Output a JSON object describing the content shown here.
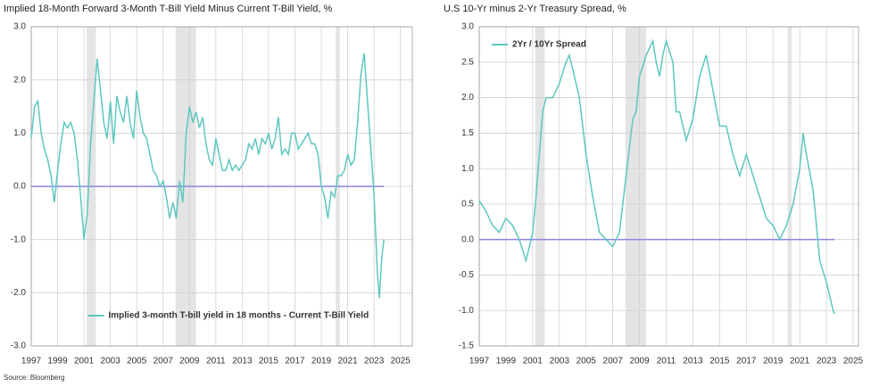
{
  "chart_data": [
    {
      "type": "line",
      "title": "Implied 18-Month Forward 3-Month T-Bill Yield Minus Current T-Bill Yield, %",
      "xlim": [
        1997,
        2025.9
      ],
      "xticks": [
        1997,
        1999,
        2001,
        2003,
        2005,
        2007,
        2009,
        2011,
        2013,
        2015,
        2017,
        2019,
        2021,
        2023,
        2025
      ],
      "ylim": [
        -3,
        3
      ],
      "yticks": [
        {
          "value": 3,
          "label": "3.0"
        },
        {
          "value": 2,
          "label": "2.0"
        },
        {
          "value": 1,
          "label": "1.0"
        },
        {
          "value": 0,
          "label": "0.0"
        },
        {
          "value": -1,
          "label": "-1.0"
        },
        {
          "value": -2,
          "label": "-2.0"
        },
        {
          "value": -3,
          "label": "-3.0"
        }
      ],
      "grid": true,
      "legend": "bottom",
      "reference_line": 0,
      "reference_color": "#8a86e0",
      "shaded_periods": [
        [
          2001.2,
          2001.9
        ],
        [
          2007.95,
          2009.5
        ],
        [
          2020.1,
          2020.4
        ]
      ],
      "x": [
        1997,
        1997.25,
        1997.5,
        1997.75,
        1998,
        1998.25,
        1998.5,
        1998.75,
        1999,
        1999.25,
        1999.5,
        1999.75,
        2000,
        2000.25,
        2000.5,
        2000.75,
        2001,
        2001.25,
        2001.5,
        2001.75,
        2002,
        2002.25,
        2002.5,
        2002.75,
        2003,
        2003.25,
        2003.5,
        2003.75,
        2004,
        2004.25,
        2004.5,
        2004.75,
        2005,
        2005.25,
        2005.5,
        2005.75,
        2006,
        2006.25,
        2006.5,
        2006.75,
        2007,
        2007.25,
        2007.5,
        2007.75,
        2008,
        2008.25,
        2008.5,
        2008.75,
        2009,
        2009.25,
        2009.5,
        2009.75,
        2010,
        2010.25,
        2010.5,
        2010.75,
        2011,
        2011.25,
        2011.5,
        2011.75,
        2012,
        2012.25,
        2012.5,
        2012.75,
        2013,
        2013.25,
        2013.5,
        2013.75,
        2014,
        2014.25,
        2014.5,
        2014.75,
        2015,
        2015.25,
        2015.5,
        2015.75,
        2016,
        2016.25,
        2016.5,
        2016.75,
        2017,
        2017.25,
        2017.5,
        2017.75,
        2018,
        2018.25,
        2018.5,
        2018.75,
        2019,
        2019.25,
        2019.5,
        2019.75,
        2020,
        2020.25,
        2020.5,
        2020.75,
        2021,
        2021.25,
        2021.5,
        2021.75,
        2022,
        2022.25,
        2022.5,
        2022.75,
        2023,
        2023.25,
        2023.4,
        2023.6,
        2023.75
      ],
      "series": [
        {
          "name": "Implied 3-month T-bill yield in 18 months - Current T-Bill Yield",
          "color": "#5ec7c0",
          "values": [
            0.9,
            1.5,
            1.6,
            1.0,
            0.7,
            0.5,
            0.2,
            -0.3,
            0.3,
            0.8,
            1.2,
            1.1,
            1.2,
            1.0,
            0.5,
            -0.2,
            -1.0,
            -0.5,
            0.8,
            1.6,
            2.4,
            1.8,
            1.2,
            0.9,
            1.6,
            0.8,
            1.7,
            1.4,
            1.2,
            1.7,
            1.2,
            0.9,
            1.8,
            1.3,
            1.0,
            0.9,
            0.6,
            0.3,
            0.2,
            0.0,
            0.1,
            -0.2,
            -0.6,
            -0.3,
            -0.6,
            0.1,
            -0.3,
            1.0,
            1.5,
            1.2,
            1.4,
            1.1,
            1.3,
            0.8,
            0.5,
            0.4,
            0.9,
            0.6,
            0.3,
            0.3,
            0.5,
            0.3,
            0.4,
            0.3,
            0.4,
            0.5,
            0.8,
            0.7,
            0.9,
            0.6,
            0.9,
            0.8,
            1.0,
            0.7,
            0.9,
            1.3,
            0.6,
            0.7,
            0.6,
            1.0,
            1.0,
            0.7,
            0.8,
            0.9,
            1.0,
            0.8,
            0.8,
            0.6,
            0.0,
            -0.2,
            -0.6,
            -0.1,
            -0.2,
            0.2,
            0.2,
            0.3,
            0.6,
            0.4,
            0.5,
            1.2,
            2.1,
            2.5,
            1.6,
            0.7,
            -0.2,
            -1.6,
            -2.1,
            -1.3,
            -1.0
          ]
        }
      ]
    },
    {
      "type": "line",
      "title": "U.S 10-Yr minus 2-Yr Treasury Spread, %",
      "xlim": [
        1997,
        2025.4
      ],
      "xticks": [
        1997,
        1999,
        2001,
        2003,
        2005,
        2007,
        2009,
        2011,
        2013,
        2015,
        2017,
        2019,
        2021,
        2023,
        2025
      ],
      "ylim": [
        -1.5,
        3
      ],
      "yticks": [
        {
          "value": 3,
          "label": "3.0"
        },
        {
          "value": 2.5,
          "label": "2.5"
        },
        {
          "value": 2,
          "label": "2.0"
        },
        {
          "value": 1.5,
          "label": "1.5"
        },
        {
          "value": 1,
          "label": "1.0"
        },
        {
          "value": 0.5,
          "label": "0.5"
        },
        {
          "value": 0,
          "label": "0.0"
        },
        {
          "value": -0.5,
          "label": "-0.5"
        },
        {
          "value": -1,
          "label": "-1.0"
        },
        {
          "value": -1.5,
          "label": "-1.5"
        }
      ],
      "grid": true,
      "legend": "top-left",
      "reference_line": 0,
      "reference_color": "#8a86e0",
      "shaded_periods": [
        [
          2001.2,
          2001.9
        ],
        [
          2007.95,
          2009.5
        ],
        [
          2020.1,
          2020.4
        ]
      ],
      "x": [
        1997,
        1997.5,
        1998,
        1998.5,
        1999,
        1999.5,
        2000,
        2000.5,
        2001,
        2001.25,
        2001.5,
        2001.75,
        2002,
        2002.5,
        2003,
        2003.5,
        2003.75,
        2004,
        2004.5,
        2005,
        2005.5,
        2006,
        2006.5,
        2007,
        2007.5,
        2008,
        2008.25,
        2008.5,
        2008.75,
        2009,
        2009.5,
        2010,
        2010.25,
        2010.5,
        2010.75,
        2011,
        2011.5,
        2011.75,
        2012,
        2012.5,
        2013,
        2013.5,
        2014,
        2014.5,
        2015,
        2015.5,
        2016,
        2016.5,
        2017,
        2017.5,
        2018,
        2018.5,
        2019,
        2019.5,
        2020,
        2020.5,
        2021,
        2021.25,
        2021.5,
        2022,
        2022.25,
        2022.5,
        2023,
        2023.25,
        2023.5,
        2023.6
      ],
      "series": [
        {
          "name": "2Yr / 10Yr Spread",
          "color": "#5ec7c0",
          "values": [
            0.55,
            0.4,
            0.2,
            0.1,
            0.3,
            0.2,
            0.0,
            -0.3,
            0.1,
            0.6,
            1.2,
            1.8,
            2.0,
            2.0,
            2.2,
            2.5,
            2.6,
            2.4,
            2.0,
            1.2,
            0.6,
            0.1,
            0.0,
            -0.1,
            0.1,
            0.9,
            1.3,
            1.7,
            1.8,
            2.3,
            2.6,
            2.8,
            2.5,
            2.3,
            2.6,
            2.8,
            2.5,
            1.8,
            1.8,
            1.4,
            1.7,
            2.3,
            2.6,
            2.1,
            1.6,
            1.6,
            1.2,
            0.9,
            1.2,
            0.9,
            0.6,
            0.3,
            0.2,
            0.0,
            0.2,
            0.5,
            1.0,
            1.5,
            1.2,
            0.7,
            0.2,
            -0.3,
            -0.6,
            -0.8,
            -1.0,
            -1.05
          ]
        }
      ]
    }
  ],
  "source": "Source: Bloomberg"
}
